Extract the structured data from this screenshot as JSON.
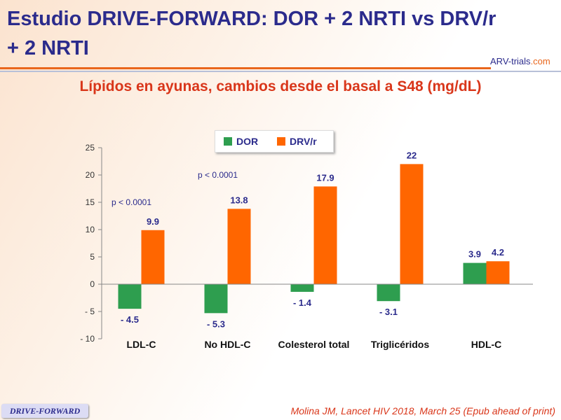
{
  "title": "Estudio DRIVE-FORWARD: DOR + 2 NRTI vs DRV/r + 2 NRTI",
  "logo": {
    "a": "ARV-trials",
    "b": ".com"
  },
  "footer": {
    "badge": "DRIVE-FORWARD",
    "citation": "Molina JM, Lancet HIV 2018, March 25 (Epub ahead of print)"
  },
  "chart_data": {
    "type": "bar",
    "title": "Lípidos en ayunas, cambios desde el basal a S48 (mg/dL)",
    "categories": [
      "LDL-C",
      "No HDL-C",
      "Colesterol total",
      "Triglicéridos",
      "HDL-C"
    ],
    "series": [
      {
        "name": "DOR",
        "color": "#2e9e4f",
        "values": [
          -4.5,
          -5.3,
          -1.4,
          -3.1,
          3.9
        ],
        "labels": [
          "- 4.5",
          "- 5.3",
          "- 1.4",
          "- 3.1",
          "3.9"
        ]
      },
      {
        "name": "DRV/r",
        "color": "#ff6600",
        "values": [
          9.9,
          13.8,
          17.9,
          22,
          4.2
        ],
        "labels": [
          "9.9",
          "13.8",
          "17.9",
          "22",
          "4.2"
        ]
      }
    ],
    "ylim": [
      -10,
      25
    ],
    "yticks": [
      25,
      20,
      15,
      10,
      5,
      0,
      -5,
      -10
    ],
    "ytick_labels": [
      "25",
      "20",
      "15",
      "10",
      "5",
      "0",
      "- 5",
      "- 10"
    ],
    "annotations": [
      {
        "text": "p < 0.0001",
        "category": "LDL-C",
        "y": 15
      },
      {
        "text": "p < 0.0001",
        "category": "No HDL-C",
        "y": 20
      }
    ],
    "legend": "top-center"
  }
}
